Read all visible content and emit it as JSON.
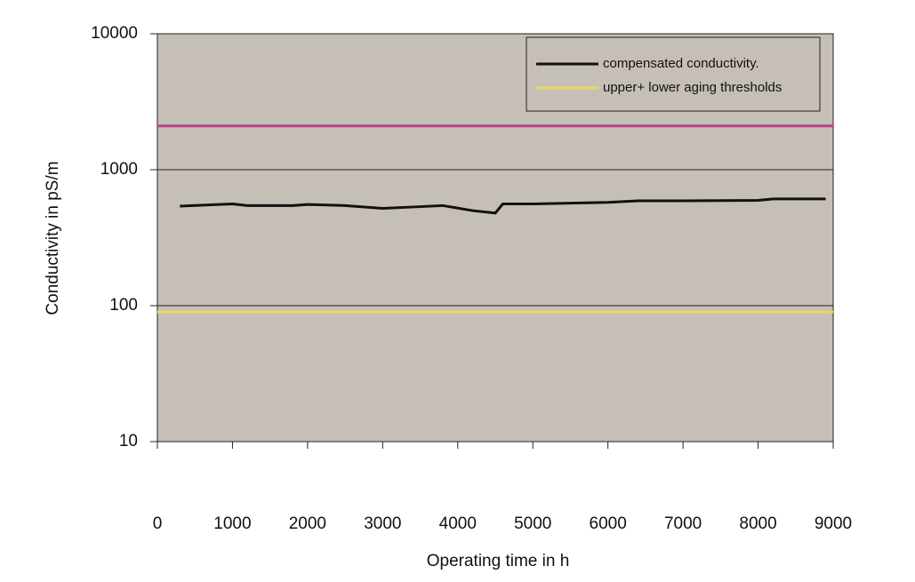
{
  "chart_data": {
    "type": "line",
    "x_label": "Operating time in h",
    "y_label": "Conductivity in pS/m",
    "log_y": true,
    "xlim": [
      0,
      9000
    ],
    "xticks": [
      0,
      1000,
      2000,
      3000,
      4000,
      5000,
      6000,
      7000,
      8000,
      9000
    ],
    "ylim": [
      10,
      10000
    ],
    "yticks": [
      10,
      100,
      1000,
      10000
    ],
    "grid": true,
    "legend_position": "upper right",
    "series": [
      {
        "name": "compensated conductivity.",
        "color": "#111111",
        "x": [
          300,
          1000,
          1200,
          1800,
          2000,
          2500,
          3000,
          3500,
          3800,
          4200,
          4500,
          4600,
          5000,
          6000,
          6400,
          7000,
          8000,
          8200,
          8900
        ],
        "values": [
          540,
          560,
          545,
          545,
          555,
          545,
          520,
          535,
          545,
          500,
          480,
          560,
          560,
          575,
          590,
          590,
          595,
          610,
          610
        ]
      }
    ],
    "thresholds": {
      "name": "upper+ lower aging thresholds",
      "legend_color": "#e8d868",
      "lines": [
        {
          "value": 2100,
          "color": "#b04880"
        },
        {
          "value": 90,
          "color": "#e8d868"
        }
      ]
    }
  }
}
